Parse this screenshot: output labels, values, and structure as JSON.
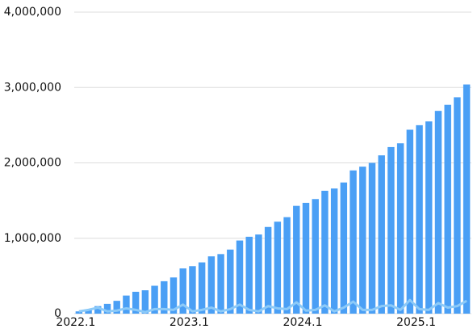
{
  "chart_data": {
    "type": "bar-line",
    "categories": [
      "2022.1",
      null,
      null,
      null,
      null,
      null,
      null,
      null,
      null,
      null,
      null,
      null,
      "2023.1",
      null,
      null,
      null,
      null,
      null,
      null,
      null,
      null,
      null,
      null,
      null,
      "2024.1",
      null,
      null,
      null,
      null,
      null,
      null,
      null,
      null,
      null,
      null,
      null,
      "2025.1",
      null,
      null,
      null,
      null,
      null
    ],
    "series": [
      {
        "type": "bar",
        "color": "#4a9ff5",
        "values": [
          30000,
          50000,
          100000,
          130000,
          170000,
          240000,
          290000,
          310000,
          370000,
          430000,
          480000,
          600000,
          630000,
          680000,
          760000,
          790000,
          850000,
          970000,
          1020000,
          1050000,
          1150000,
          1220000,
          1280000,
          1430000,
          1470000,
          1520000,
          1630000,
          1660000,
          1740000,
          1900000,
          1950000,
          2000000,
          2100000,
          2210000,
          2260000,
          2440000,
          2500000,
          2550000,
          2690000,
          2770000,
          2870000,
          3040000
        ]
      },
      {
        "type": "line",
        "color": "#8ccaf8",
        "values": [
          30000,
          50000,
          80000,
          30000,
          40000,
          70000,
          50000,
          20000,
          60000,
          60000,
          50000,
          120000,
          30000,
          50000,
          80000,
          30000,
          60000,
          120000,
          50000,
          30000,
          100000,
          70000,
          60000,
          150000,
          40000,
          50000,
          110000,
          30000,
          80000,
          160000,
          50000,
          50000,
          100000,
          110000,
          50000,
          180000,
          60000,
          50000,
          140000,
          80000,
          100000,
          170000
        ]
      }
    ],
    "ylim": [
      0,
      4000000
    ],
    "yticks": [
      0,
      {
        "value": 1000000,
        "label": "1,000,000"
      },
      {
        "value": 2000000,
        "label": "2,000,000"
      },
      {
        "value": 3000000,
        "label": "3,000,000"
      },
      {
        "value": 4000000,
        "label": "4,000,000"
      }
    ],
    "grid": true
  }
}
